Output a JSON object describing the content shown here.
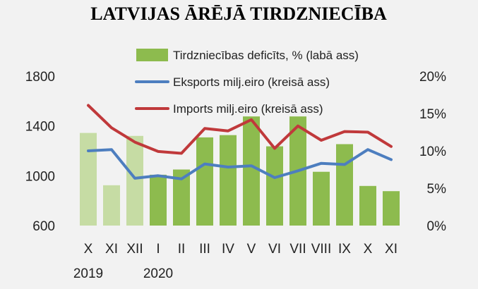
{
  "chart_data": {
    "type": "bar",
    "title": "LATVIJAS ĀRĒJĀ TIRDZNIECĪBA",
    "categories": [
      "X",
      "XI",
      "XII",
      "I",
      "II",
      "III",
      "IV",
      "V",
      "VI",
      "VII",
      "VIII",
      "IX",
      "X",
      "XI"
    ],
    "year_labels": [
      {
        "label": "2019",
        "category_index": 0
      },
      {
        "label": "2020",
        "category_index": 3
      }
    ],
    "series": [
      {
        "name": "Tirdzniecības deficīts, % (labā ass)",
        "type": "bar",
        "axis": "right",
        "color": "#8dbb4e",
        "light_color": "#c6dca4",
        "light_indices": [
          0,
          1,
          2
        ],
        "values": [
          12.4,
          5.4,
          12,
          6.8,
          7.5,
          11.8,
          12.1,
          14.6,
          10.6,
          14.6,
          7.2,
          10.9,
          5.3,
          4.6
        ]
      },
      {
        "name": "Eksports milj.eiro (kreisā ass)",
        "type": "line",
        "axis": "left",
        "color": "#4d7ebf",
        "values": [
          1200,
          1210,
          980,
          1000,
          975,
          1095,
          1070,
          1080,
          985,
          1040,
          1100,
          1090,
          1210,
          1130
        ]
      },
      {
        "name": "Imports milj.eiro (kreisā ass)",
        "type": "line",
        "axis": "left",
        "color": "#c0393b",
        "values": [
          1565,
          1385,
          1270,
          1195,
          1180,
          1380,
          1360,
          1450,
          1220,
          1400,
          1285,
          1355,
          1350,
          1235
        ]
      }
    ],
    "left_axis": {
      "min": 600,
      "max": 1800,
      "ticks": [
        600,
        1000,
        1400,
        1800
      ],
      "tick_labels": [
        "600",
        "1000",
        "1400",
        "1800"
      ]
    },
    "right_axis": {
      "min": 0,
      "max": 20,
      "ticks": [
        0,
        5,
        10,
        15,
        20
      ],
      "tick_labels": [
        "0%",
        "5%",
        "10%",
        "15%",
        "20%"
      ]
    },
    "grid": false,
    "legend_position": "top-center"
  }
}
